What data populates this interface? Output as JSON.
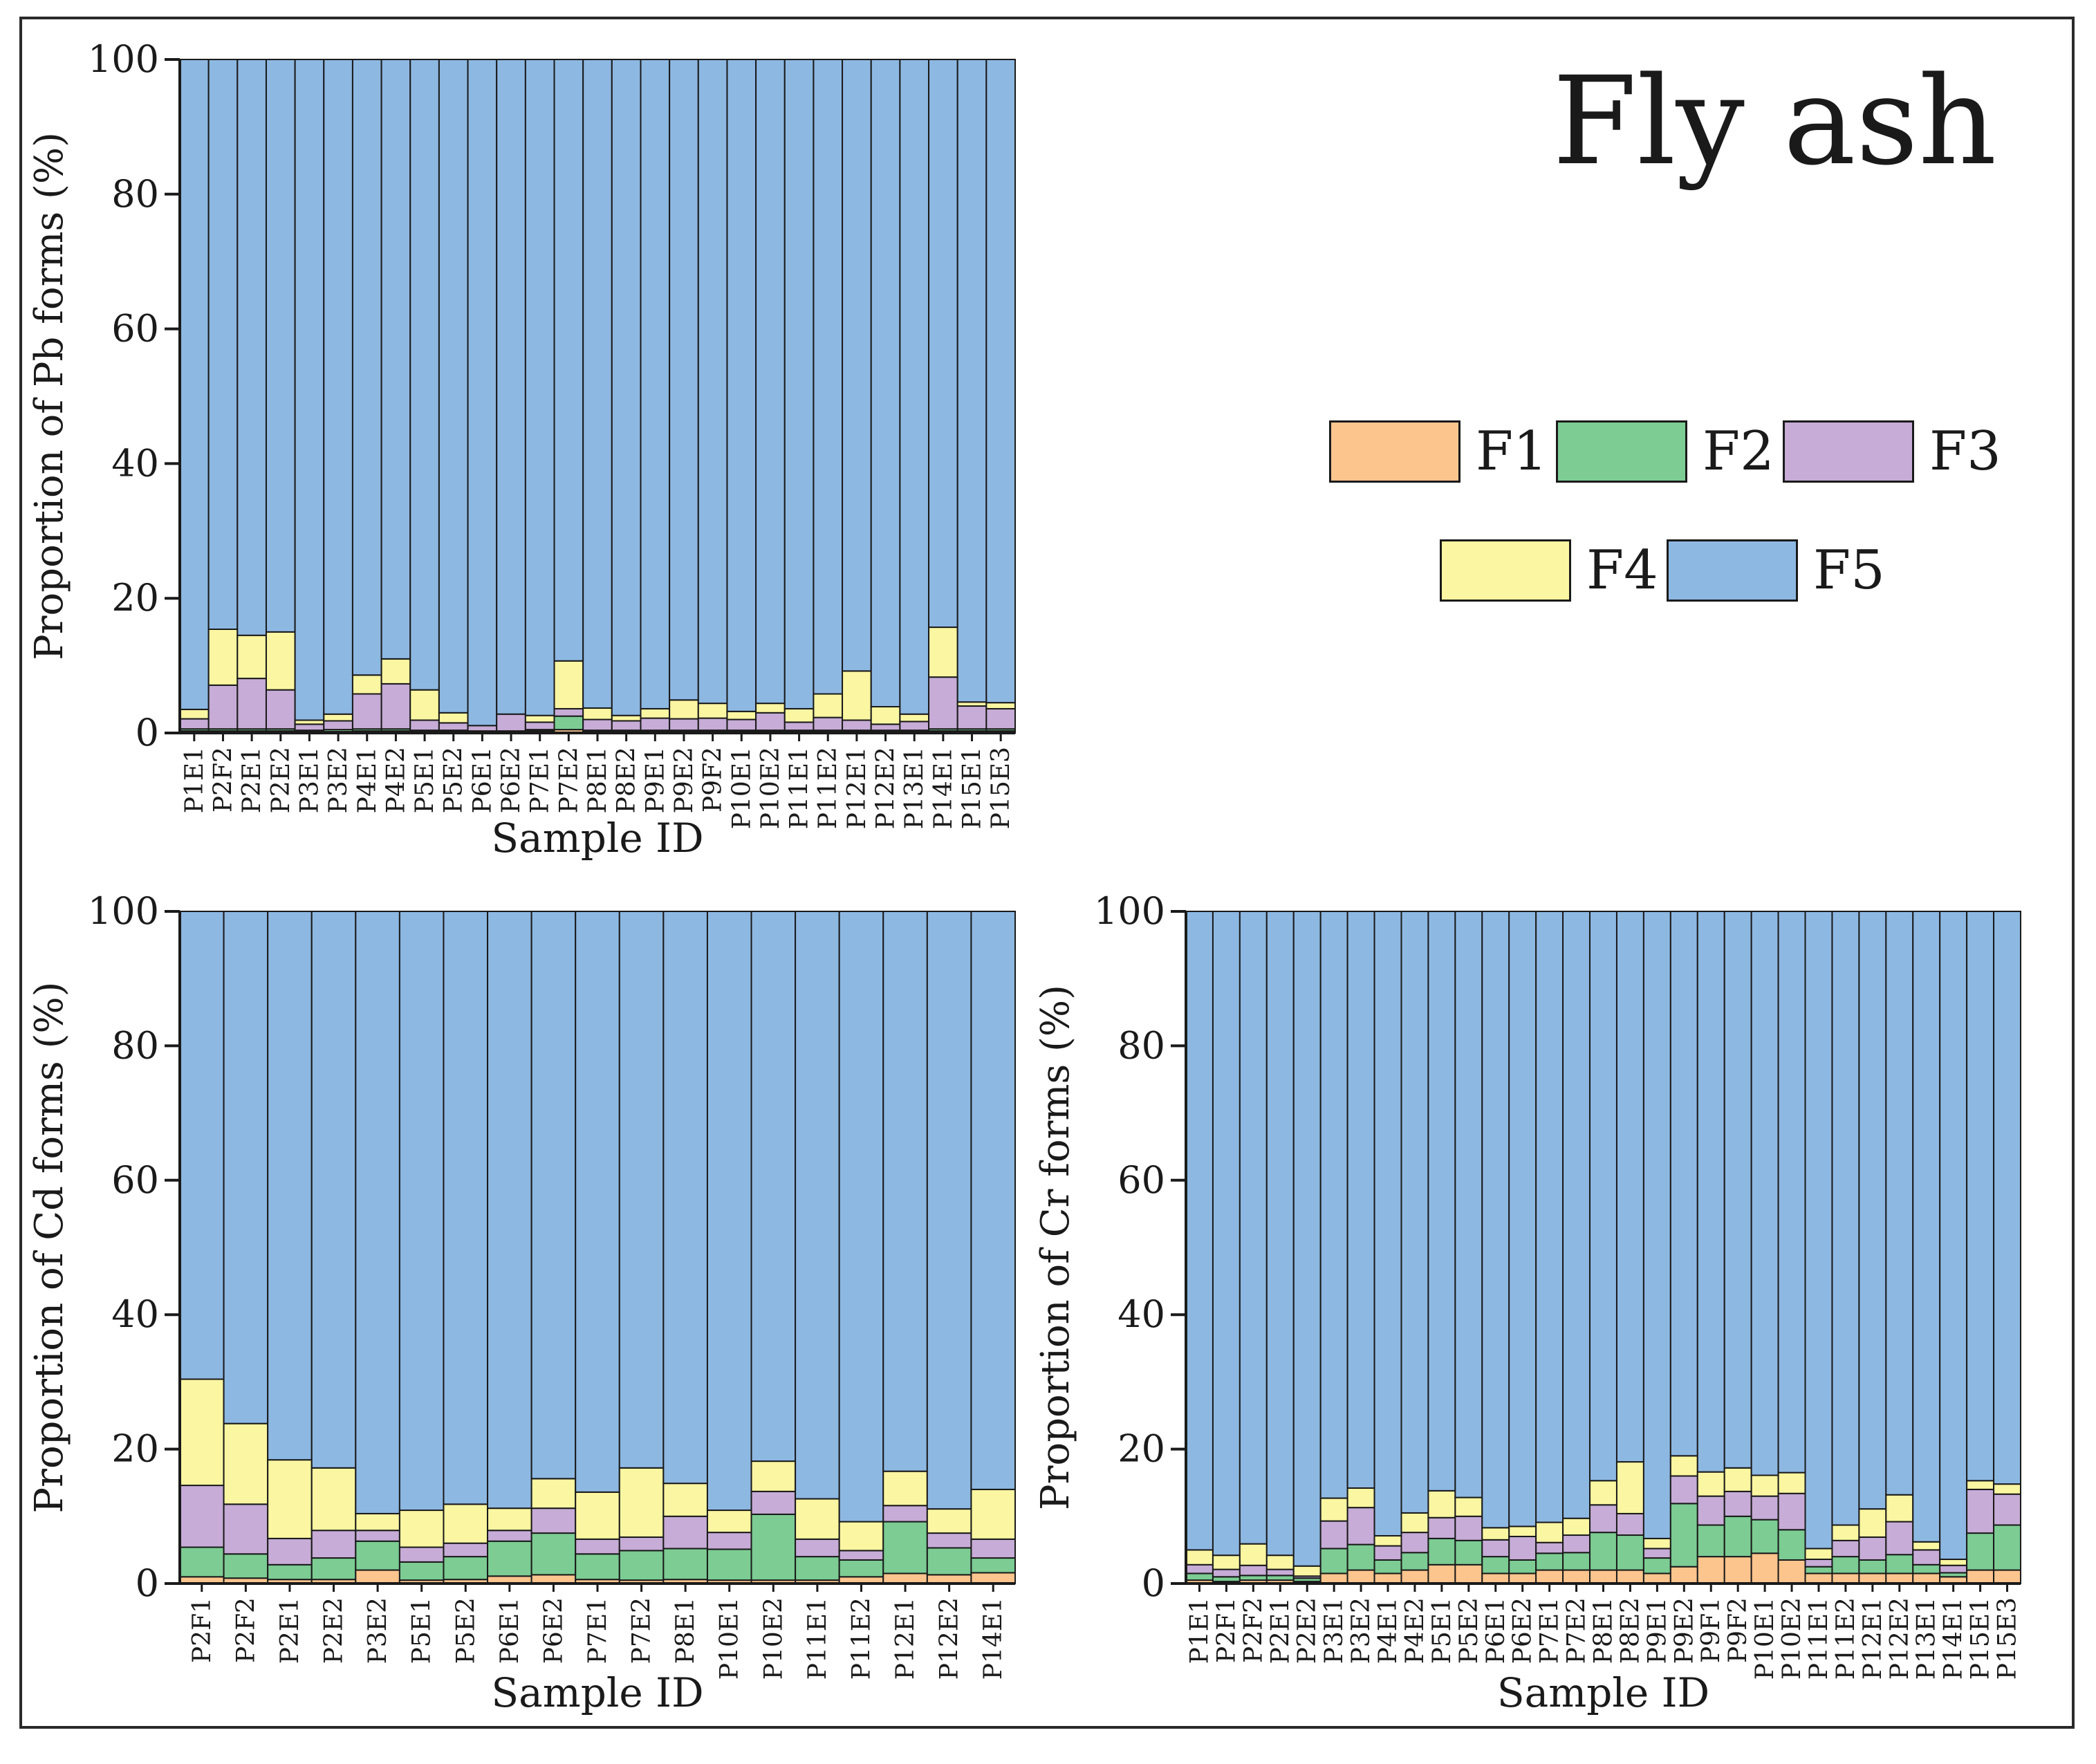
{
  "title": "Fly ash",
  "legend": [
    {
      "label": "F1",
      "color": "#fdc58e"
    },
    {
      "label": "F2",
      "color": "#7ccc93"
    },
    {
      "label": "F3",
      "color": "#c6acd6"
    },
    {
      "label": "F4",
      "color": "#fbf6a1"
    },
    {
      "label": "F5",
      "color": "#8db8e2"
    }
  ],
  "chart_data": [
    {
      "type": "bar",
      "stacked": true,
      "ylabel": "Proportion of Pb forms (%)",
      "xlabel": "Sample ID",
      "ylim": [
        0,
        100
      ],
      "yticks": [
        "0",
        "20",
        "40",
        "60",
        "80",
        "100"
      ],
      "categories": [
        "P1E1",
        "P2F2",
        "P2E1",
        "P2E2",
        "P3E1",
        "P3E2",
        "P4E1",
        "P4E2",
        "P5E1",
        "P5E2",
        "P6E1",
        "P6E2",
        "P7E1",
        "P7E2",
        "P8E1",
        "P8E2",
        "P9E1",
        "P9E2",
        "P9F2",
        "P10E1",
        "P10E2",
        "P11E1",
        "P11E2",
        "P12E1",
        "P12E2",
        "P13E1",
        "P14E1",
        "P15E1",
        "P15E3"
      ],
      "series": [
        {
          "name": "F1",
          "values": [
            0.3,
            0.3,
            0.3,
            0.3,
            0.2,
            0.2,
            0.3,
            0.3,
            0.2,
            0.2,
            0.1,
            0.1,
            0.3,
            0.5,
            0.2,
            0.2,
            0.2,
            0.2,
            0.2,
            0.2,
            0.2,
            0.2,
            0.2,
            0.2,
            0.2,
            0.2,
            0.3,
            0.3,
            0.3
          ]
        },
        {
          "name": "F2",
          "values": [
            0.3,
            0.3,
            0.3,
            0.3,
            0.2,
            0.3,
            0.3,
            0.3,
            0.2,
            0.2,
            0.2,
            0.2,
            0.2,
            2.0,
            0.2,
            0.2,
            0.2,
            0.2,
            0.2,
            0.2,
            0.2,
            0.2,
            0.2,
            0.2,
            0.2,
            0.2,
            0.3,
            0.3,
            0.3
          ]
        },
        {
          "name": "F3",
          "values": [
            1.5,
            6.5,
            7.5,
            5.8,
            0.9,
            1.3,
            5.2,
            6.7,
            1.5,
            1.1,
            0.8,
            2.5,
            1.1,
            1.1,
            1.6,
            1.4,
            1.8,
            1.7,
            1.8,
            1.6,
            2.6,
            1.2,
            1.9,
            1.5,
            0.9,
            1.3,
            7.7,
            3.4,
            3.0
          ]
        },
        {
          "name": "F4",
          "values": [
            1.4,
            8.3,
            6.4,
            8.6,
            0.6,
            1.0,
            2.8,
            3.7,
            4.5,
            1.5,
            0.0,
            0.0,
            1.0,
            7.1,
            1.7,
            0.8,
            1.4,
            2.8,
            2.2,
            1.2,
            1.4,
            2.0,
            3.5,
            7.3,
            2.6,
            1.1,
            7.4,
            0.6,
            0.9
          ]
        },
        {
          "name": "F5",
          "values": [
            96.5,
            84.6,
            85.5,
            85.0,
            98.1,
            97.2,
            91.4,
            89.0,
            93.6,
            97.0,
            98.9,
            97.2,
            97.4,
            89.3,
            96.3,
            97.4,
            96.4,
            95.1,
            95.6,
            96.8,
            95.6,
            96.4,
            94.2,
            90.8,
            96.1,
            97.2,
            84.3,
            95.4,
            95.5
          ]
        }
      ]
    },
    {
      "type": "bar",
      "stacked": true,
      "ylabel": "Proportion of Cd forms (%)",
      "xlabel": "Sample ID",
      "ylim": [
        0,
        100
      ],
      "yticks": [
        "0",
        "20",
        "40",
        "60",
        "80",
        "100"
      ],
      "categories": [
        "P2F1",
        "P2F2",
        "P2E1",
        "P2E2",
        "P3E2",
        "P5E1",
        "P5E2",
        "P6E1",
        "P6E2",
        "P7E1",
        "P7E2",
        "P8E1",
        "P10E1",
        "P10E2",
        "P11E1",
        "P11E2",
        "P12E1",
        "P12E2",
        "P14E1"
      ],
      "series": [
        {
          "name": "F1",
          "values": [
            1.0,
            0.8,
            0.6,
            0.6,
            2.0,
            0.5,
            0.6,
            1.1,
            1.3,
            0.6,
            0.5,
            0.6,
            0.5,
            0.5,
            0.5,
            1.0,
            1.5,
            1.3,
            1.6
          ]
        },
        {
          "name": "F2",
          "values": [
            4.4,
            3.6,
            2.2,
            3.2,
            4.3,
            2.7,
            3.4,
            5.2,
            6.2,
            3.8,
            4.4,
            4.6,
            4.6,
            9.8,
            3.5,
            2.5,
            7.7,
            4.0,
            2.2
          ]
        },
        {
          "name": "F3",
          "values": [
            9.2,
            7.4,
            3.9,
            4.1,
            1.6,
            2.2,
            2.0,
            1.6,
            3.7,
            2.2,
            2.0,
            4.8,
            2.5,
            3.4,
            2.6,
            1.4,
            2.4,
            2.2,
            2.8
          ]
        },
        {
          "name": "F4",
          "values": [
            15.8,
            12.0,
            11.7,
            9.3,
            2.5,
            5.5,
            5.8,
            3.3,
            4.4,
            7.0,
            10.3,
            4.9,
            3.3,
            4.5,
            6.0,
            4.3,
            5.1,
            3.6,
            7.4
          ]
        },
        {
          "name": "F5",
          "values": [
            69.6,
            76.2,
            81.6,
            82.8,
            89.6,
            89.1,
            88.2,
            88.8,
            84.4,
            86.4,
            82.8,
            85.1,
            89.1,
            81.8,
            87.4,
            90.8,
            83.3,
            88.9,
            86.0
          ]
        }
      ]
    },
    {
      "type": "bar",
      "stacked": true,
      "ylabel": "Proportion of Cr forms (%)",
      "xlabel": "Sample ID",
      "ylim": [
        0,
        100
      ],
      "yticks": [
        "0",
        "20",
        "40",
        "60",
        "80",
        "100"
      ],
      "categories": [
        "P1E1",
        "P2F1",
        "P2F2",
        "P2E1",
        "P2E2",
        "P3E1",
        "P3E2",
        "P4E1",
        "P4E2",
        "P5E1",
        "P5E2",
        "P6E1",
        "P6E2",
        "P7E1",
        "P7E2",
        "P8E1",
        "P8E2",
        "P9E1",
        "P9E2",
        "P9F1",
        "P9F2",
        "P10E1",
        "P10E2",
        "P11E1",
        "P11E2",
        "P12E1",
        "P12E2",
        "P13E1",
        "P14E1",
        "P15E1",
        "P15E3"
      ],
      "series": [
        {
          "name": "F1",
          "values": [
            0.5,
            0.3,
            0.5,
            0.5,
            0.3,
            1.5,
            2.0,
            1.5,
            2.0,
            2.8,
            2.8,
            1.5,
            1.5,
            2.0,
            2.0,
            2.0,
            2.0,
            1.5,
            2.5,
            4.0,
            4.0,
            4.5,
            3.5,
            1.5,
            1.5,
            1.5,
            1.5,
            1.5,
            1.0,
            2.0,
            2.0
          ]
        },
        {
          "name": "F2",
          "values": [
            1.0,
            0.7,
            0.7,
            0.7,
            0.5,
            3.7,
            3.8,
            2.0,
            2.6,
            3.9,
            3.6,
            2.5,
            2.0,
            2.5,
            2.6,
            5.6,
            5.2,
            2.3,
            9.4,
            4.7,
            6.0,
            5.0,
            4.5,
            1.0,
            2.5,
            2.0,
            2.8,
            1.3,
            0.6,
            5.5,
            6.7
          ]
        },
        {
          "name": "F3",
          "values": [
            1.3,
            1.1,
            1.5,
            0.9,
            0.3,
            4.1,
            5.5,
            2.1,
            3.0,
            3.1,
            3.6,
            2.5,
            3.5,
            1.6,
            2.6,
            4.1,
            3.2,
            1.4,
            4.1,
            4.3,
            3.7,
            3.5,
            5.4,
            1.1,
            2.4,
            3.4,
            4.9,
            2.2,
            1.1,
            6.5,
            4.6
          ]
        },
        {
          "name": "F4",
          "values": [
            2.2,
            2.1,
            3.2,
            2.1,
            1.5,
            3.4,
            2.9,
            1.5,
            2.9,
            4.0,
            2.8,
            1.8,
            1.5,
            3.0,
            2.5,
            3.6,
            7.7,
            1.5,
            3.0,
            3.6,
            3.5,
            3.1,
            3.1,
            1.6,
            2.3,
            4.2,
            4.0,
            1.2,
            0.9,
            1.3,
            1.5
          ]
        },
        {
          "name": "F5",
          "values": [
            95.0,
            95.8,
            94.1,
            95.8,
            97.4,
            87.3,
            85.8,
            92.9,
            89.5,
            86.2,
            87.2,
            91.7,
            91.5,
            90.9,
            90.3,
            84.7,
            81.9,
            93.3,
            81.0,
            83.4,
            82.8,
            83.9,
            83.5,
            94.8,
            91.3,
            88.9,
            86.8,
            93.8,
            96.4,
            84.7,
            85.2
          ]
        }
      ]
    }
  ]
}
